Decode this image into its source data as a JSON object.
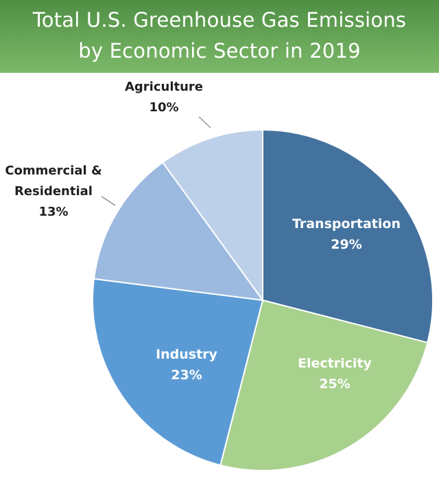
{
  "header": {
    "title_line_1": "Total U.S. Greenhouse Gas Emissions",
    "title_line_2": "by Economic Sector in 2019"
  },
  "colors": {
    "header_bg": "#5c9c4e",
    "Transportation": "#44729e",
    "Electricity": "#a8d18d",
    "Industry": "#5b9bd5",
    "Commercial & Residential": "#9cb9df",
    "Agriculture": "#bdd0ea",
    "inner_label": "#ffffff",
    "outer_label": "#1f1f1f"
  },
  "chart_data": {
    "type": "pie",
    "title": "Total U.S. Greenhouse Gas Emissions by Economic Sector in 2019",
    "unit": "%",
    "slices": [
      {
        "label_lines": [
          "Transportation"
        ],
        "value": 29,
        "value_label": "29%"
      },
      {
        "label_lines": [
          "Electricity"
        ],
        "value": 25,
        "value_label": "25%"
      },
      {
        "label_lines": [
          "Industry"
        ],
        "value": 23,
        "value_label": "23%"
      },
      {
        "label_lines": [
          "Commercial &",
          "Residential"
        ],
        "value": 13,
        "value_label": "13%"
      },
      {
        "label_lines": [
          "Agriculture"
        ],
        "value": 10,
        "value_label": "10%"
      }
    ]
  }
}
